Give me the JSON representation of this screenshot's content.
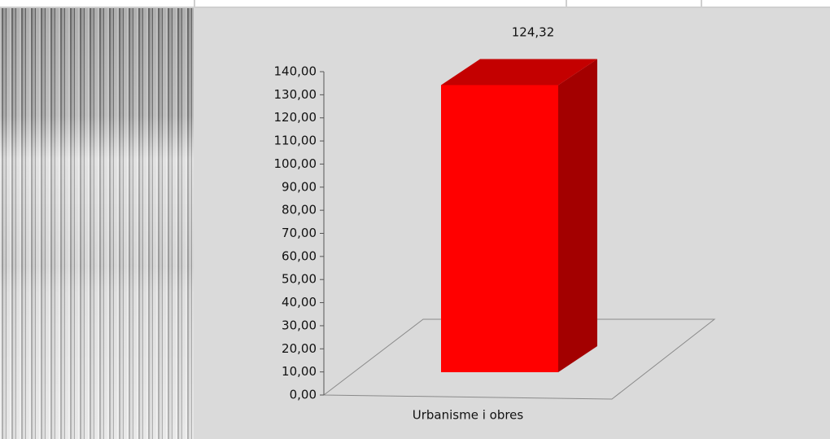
{
  "chart_data": {
    "type": "bar",
    "categories": [
      "Urbanisme i obres"
    ],
    "values": [
      124.32
    ],
    "value_labels": [
      "124,32"
    ],
    "color": "#ff0000",
    "ylim": [
      0,
      140
    ],
    "yticks": [
      {
        "value": 0,
        "label": "0,00"
      },
      {
        "value": 10,
        "label": "10,00"
      },
      {
        "value": 20,
        "label": "20,00"
      },
      {
        "value": 30,
        "label": "30,00"
      },
      {
        "value": 40,
        "label": "40,00"
      },
      {
        "value": 50,
        "label": "50,00"
      },
      {
        "value": 60,
        "label": "60,00"
      },
      {
        "value": 70,
        "label": "70,00"
      },
      {
        "value": 80,
        "label": "80,00"
      },
      {
        "value": 90,
        "label": "90,00"
      },
      {
        "value": 100,
        "label": "100,00"
      },
      {
        "value": 110,
        "label": "110,00"
      },
      {
        "value": 120,
        "label": "120,00"
      },
      {
        "value": 130,
        "label": "130,00"
      },
      {
        "value": 140,
        "label": "140,00"
      }
    ]
  }
}
